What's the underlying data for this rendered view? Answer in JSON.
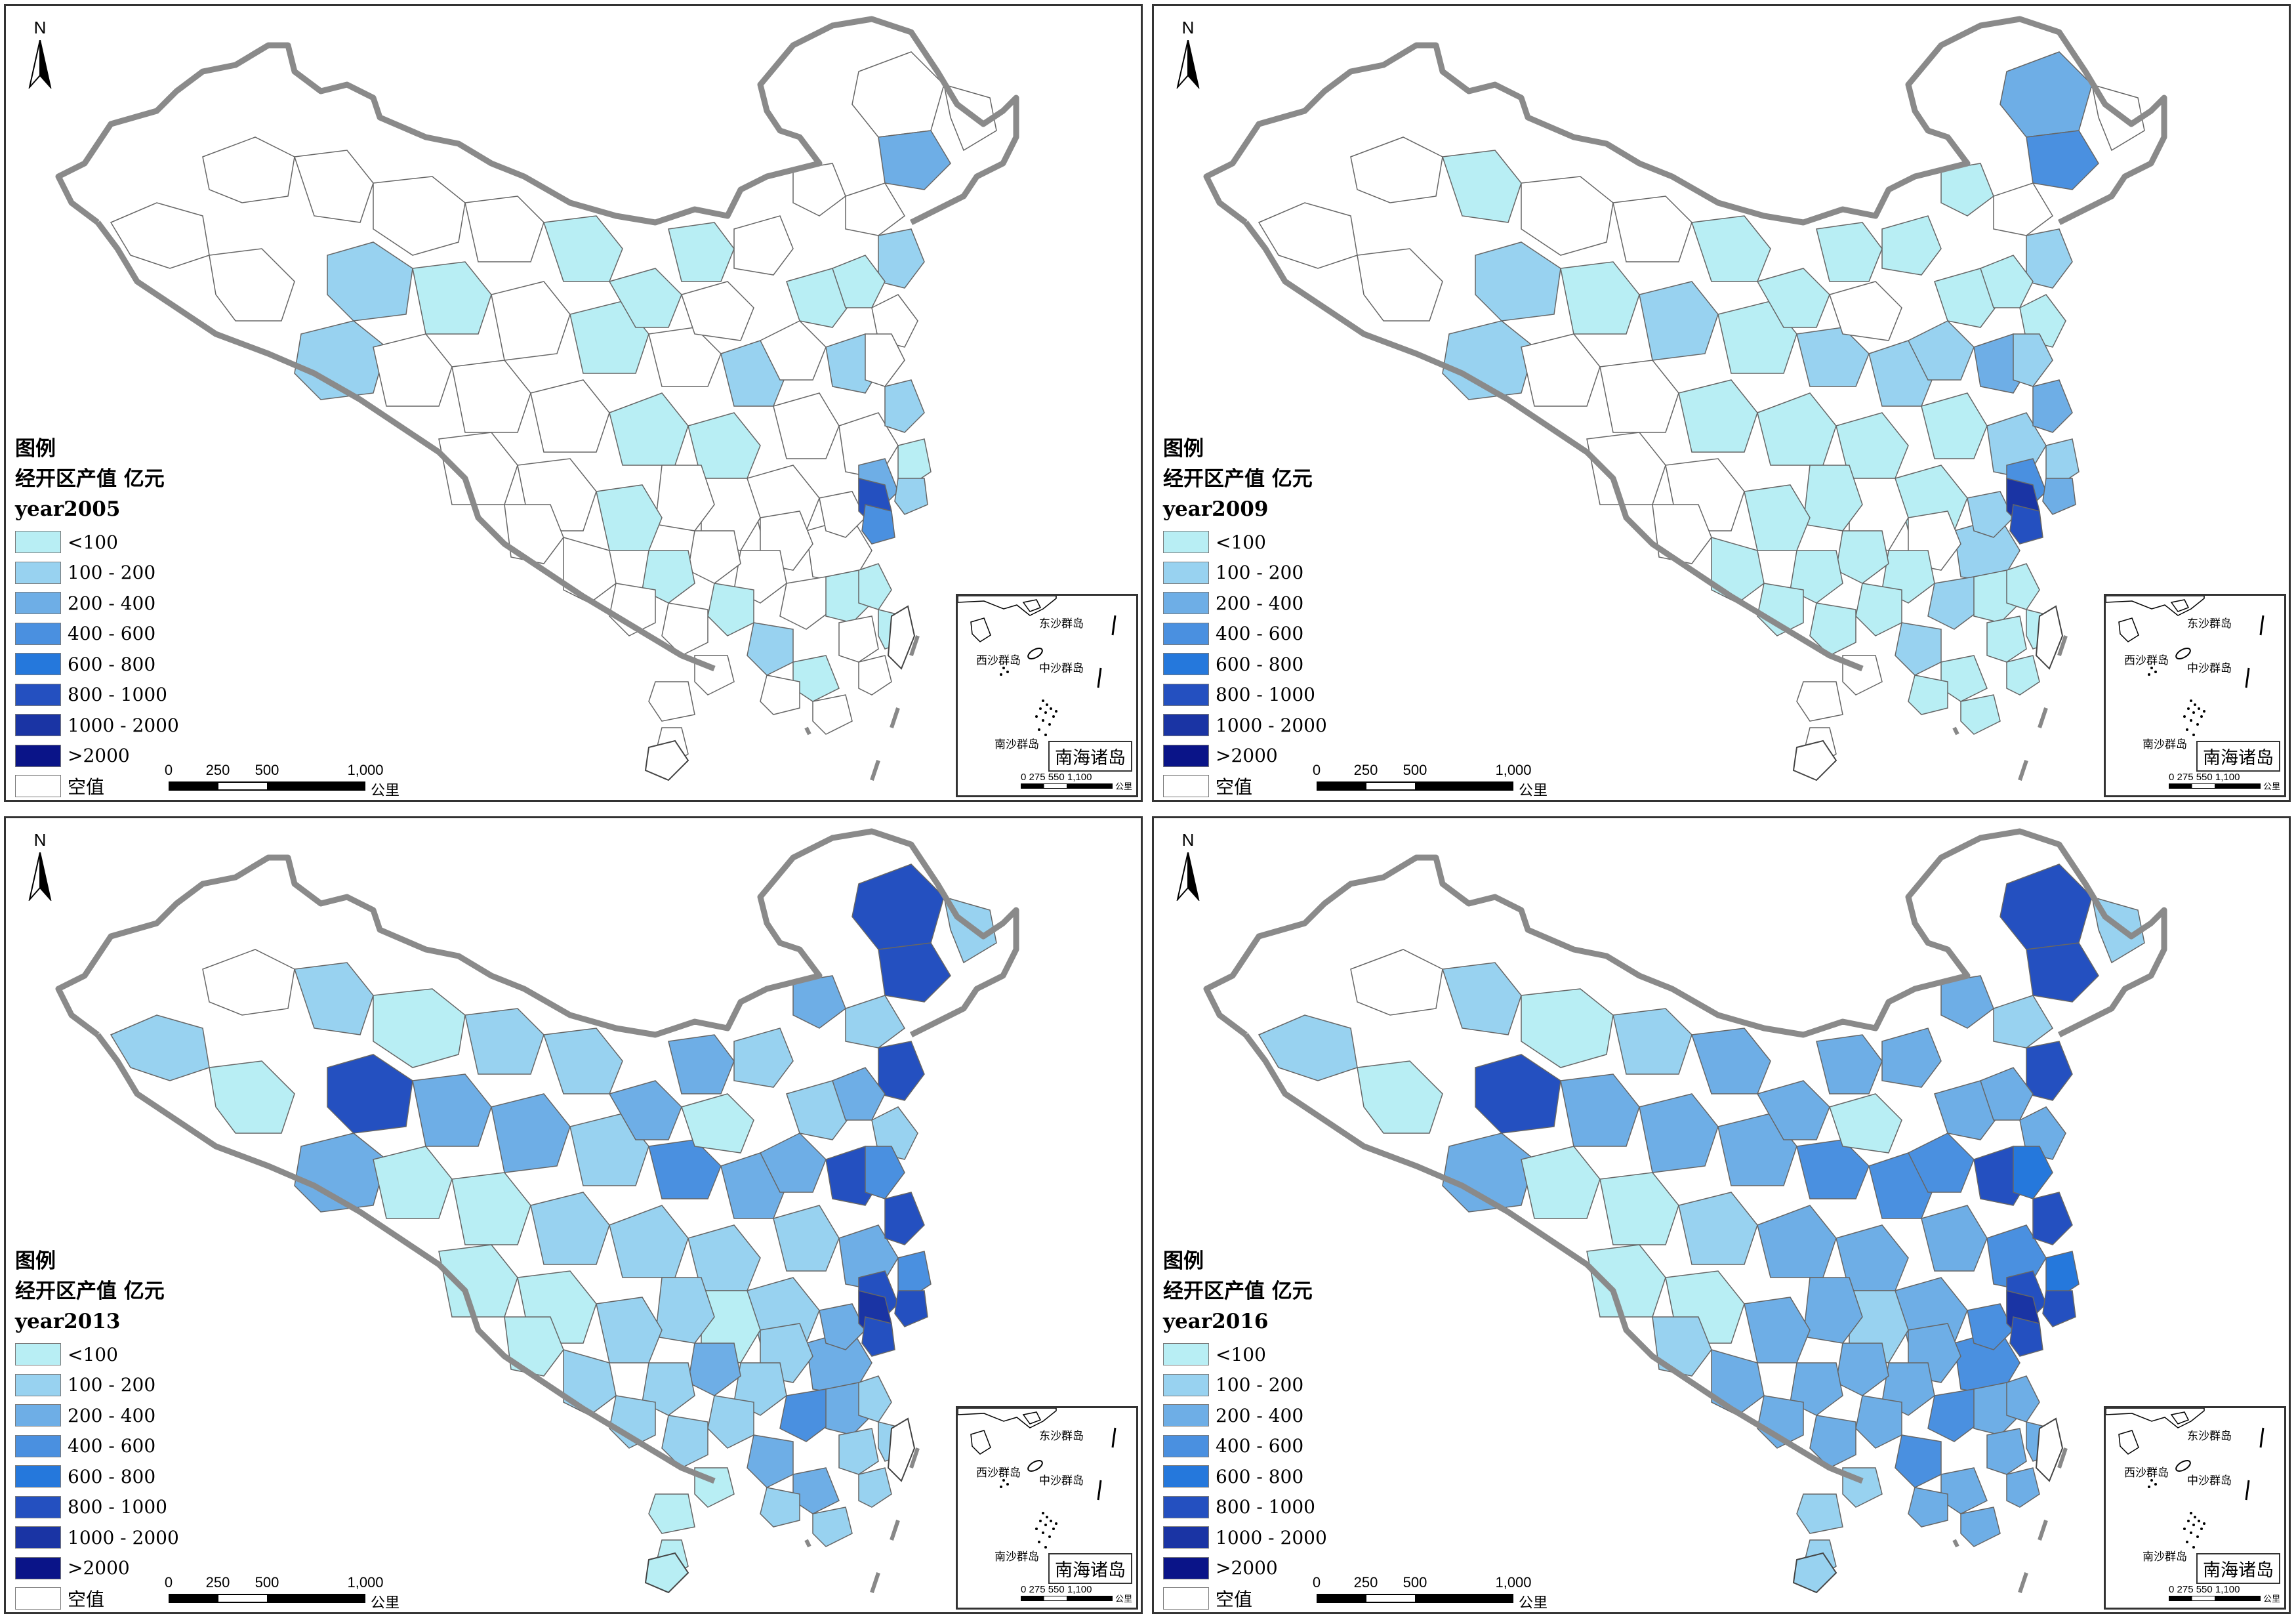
{
  "north_label": "N",
  "legend": {
    "title": "图例",
    "subtitle": "经开区产值 亿元",
    "classes": [
      {
        "label": "<100",
        "color": "#b8eef4"
      },
      {
        "label": "100 - 200",
        "color": "#98d2f0"
      },
      {
        "label": "200 - 400",
        "color": "#6eaee6"
      },
      {
        "label": "400 - 600",
        "color": "#4a90e0"
      },
      {
        "label": "600 - 800",
        "color": "#2578dc"
      },
      {
        "label": "800 - 1000",
        "color": "#2450c0"
      },
      {
        "label": "1000 - 2000",
        "color": "#1a34a4"
      },
      {
        "label": ">2000",
        "color": "#0a1488"
      },
      {
        "label": "空值",
        "color": "#ffffff"
      }
    ]
  },
  "scale_bar": {
    "ticks": [
      "0",
      "250",
      "500",
      "1,000"
    ],
    "unit": "公里"
  },
  "inset": {
    "title": "南海诸岛",
    "labels": {
      "dongsha": "东沙群岛",
      "xisha": "西沙群岛",
      "zhongsha": "中沙群岛",
      "nansha": "南沙群岛"
    },
    "scale_ticks": "0  275 550    1,100",
    "scale_unit": "公里"
  },
  "panels": [
    {
      "id": "tl",
      "year_label": "year2005",
      "regions": [
        0,
        0,
        2,
        0,
        0,
        0,
        1,
        2,
        0,
        0,
        0,
        1,
        0,
        1,
        1,
        0,
        0,
        0,
        1,
        0,
        1,
        2,
        0,
        3,
        0,
        0,
        0,
        0,
        1,
        2,
        0,
        0,
        1,
        0,
        0,
        0,
        0,
        0,
        1,
        0,
        2,
        1,
        0,
        0,
        3,
        0,
        0,
        2,
        1,
        6,
        0,
        0,
        1,
        0,
        1,
        1,
        0,
        2,
        0,
        0,
        0,
        1,
        0,
        4,
        0,
        0,
        1,
        0,
        0,
        0,
        1,
        0,
        2
      ]
    },
    {
      "id": "tr",
      "year_label": "year2009",
      "regions": [
        0,
        0,
        2,
        1,
        0,
        0,
        1,
        2,
        0,
        0,
        2,
        1,
        0,
        1,
        1,
        1,
        0,
        2,
        1,
        0,
        1,
        2,
        3,
        4,
        0,
        1,
        0,
        2,
        1,
        3,
        0,
        1,
        1,
        1,
        1,
        0,
        2,
        1,
        1,
        2,
        2,
        1,
        1,
        2,
        4,
        2,
        0,
        3,
        2,
        7,
        1,
        1,
        1,
        2,
        1,
        1,
        1,
        2,
        0,
        1,
        1,
        1,
        1,
        6,
        0,
        0,
        1,
        1,
        0,
        1,
        1,
        1,
        3
      ]
    },
    {
      "id": "bl",
      "year_label": "year2013",
      "regions": [
        2,
        0,
        6,
        2,
        1,
        2,
        3,
        3,
        1,
        1,
        3,
        2,
        1,
        2,
        3,
        2,
        1,
        4,
        2,
        1,
        2,
        3,
        6,
        6,
        2,
        3,
        2,
        3,
        2,
        6,
        1,
        2,
        3,
        2,
        2,
        1,
        3,
        2,
        2,
        3,
        6,
        3,
        2,
        4,
        6,
        3,
        2,
        6,
        4,
        7,
        2,
        3,
        2,
        4,
        3,
        2,
        2,
        3,
        1,
        2,
        2,
        3,
        2,
        6,
        1,
        1,
        2,
        2,
        1,
        2,
        2,
        2,
        6
      ]
    },
    {
      "id": "br",
      "year_label": "year2016",
      "regions": [
        2,
        0,
        6,
        2,
        1,
        2,
        3,
        3,
        1,
        1,
        3,
        3,
        1,
        3,
        3,
        2,
        1,
        4,
        3,
        1,
        3,
        4,
        6,
        6,
        2,
        3,
        2,
        4,
        3,
        6,
        1,
        3,
        3,
        3,
        3,
        2,
        4,
        3,
        3,
        4,
        6,
        3,
        3,
        5,
        6,
        4,
        3,
        6,
        5,
        7,
        3,
        3,
        3,
        4,
        3,
        3,
        3,
        4,
        2,
        3,
        3,
        3,
        3,
        6,
        2,
        2,
        3,
        3,
        2,
        3,
        3,
        3,
        6
      ]
    }
  ]
}
